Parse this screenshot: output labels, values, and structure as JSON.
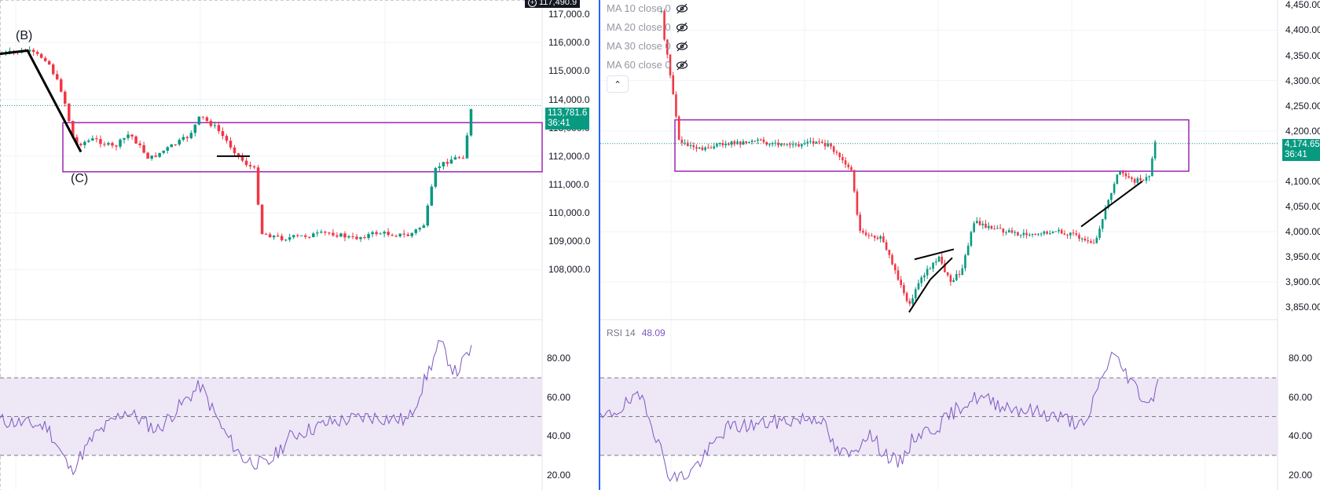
{
  "left_chart": {
    "top_price_tag": "117,490.9",
    "price_axis": [
      "117,000.0",
      "116,000.0",
      "115,000.0",
      "114,000.0",
      "113,000.0",
      "112,000.0",
      "111,000.0",
      "110,000.0",
      "109,000.0",
      "108,000.0"
    ],
    "price_range": [
      107100,
      117500
    ],
    "current_price": "113,781.6",
    "countdown": "36:41",
    "wave_labels": [
      "(B)",
      "(C)"
    ],
    "rsi_axis": [
      "80.00",
      "60.00",
      "40.00",
      "20.00"
    ],
    "colors": {
      "up": "#089981",
      "down": "#f23645",
      "box": "#9c27b0",
      "rsi_line": "#7e57c2",
      "rsi_band": "#ede7f6"
    }
  },
  "right_chart": {
    "ma_rows": [
      {
        "label": "MA 10 close 0",
        "icon": "eye-off-icon"
      },
      {
        "label": "MA 20 close 0",
        "icon": "eye-off-icon"
      },
      {
        "label": "MA 30 close 0",
        "icon": "eye-off-icon"
      },
      {
        "label": "MA 60 close 0",
        "icon": "eye-off-icon"
      }
    ],
    "collapse_icon": "chevron-up-icon",
    "price_axis": [
      "4,450.00",
      "4,400.00",
      "4,350.00",
      "4,300.00",
      "4,250.00",
      "4,200.00",
      "4,150.00",
      "4,100.00",
      "4,050.00",
      "4,000.00",
      "3,950.00",
      "3,900.00",
      "3,850.00"
    ],
    "price_range": [
      3830,
      4460
    ],
    "current_price": "4,174.65",
    "countdown": "36:41",
    "rsi_title": {
      "name": "RSI 14",
      "value": "48.09"
    },
    "rsi_axis": [
      "80.00",
      "60.00",
      "40.00",
      "20.00"
    ]
  }
}
